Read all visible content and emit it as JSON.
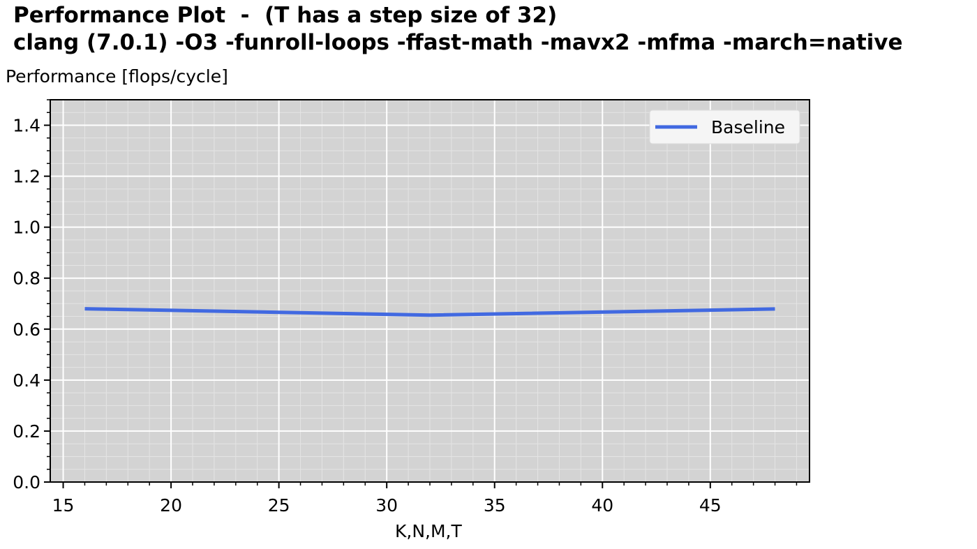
{
  "title_lines": [
    "Performance Plot  -  (T has a step size of 32)",
    "clang (7.0.1) -O3 -funroll-loops -ffast-math -mavx2 -mfma -march=native"
  ],
  "chart_data": {
    "type": "line",
    "title": "Performance Plot  -  (T has a step size of 32)\nclang (7.0.1) -O3 -funroll-loops -ffast-math -mavx2 -mfma -march=native",
    "xlabel": "K,N,M,T",
    "ylabel": "Performance [flops/cycle]",
    "xlim": [
      14.4,
      49.6
    ],
    "ylim": [
      0.0,
      1.5
    ],
    "x_ticks": [
      15,
      20,
      25,
      30,
      35,
      40,
      45
    ],
    "x_tick_labels": [
      "15",
      "20",
      "25",
      "30",
      "35",
      "40",
      "45"
    ],
    "y_ticks": [
      0.0,
      0.2,
      0.4,
      0.6,
      0.8,
      1.0,
      1.2,
      1.4
    ],
    "y_tick_labels": [
      "0.0",
      "0.2",
      "0.4",
      "0.6",
      "0.8",
      "1.0",
      "1.2",
      "1.4"
    ],
    "grid": true,
    "minor_grid": true,
    "background": "#d3d3d3",
    "legend_position": "top-right",
    "series": [
      {
        "name": "Baseline",
        "color": "#4169e1",
        "x": [
          16,
          32,
          48
        ],
        "y": [
          0.68,
          0.655,
          0.679
        ]
      }
    ]
  }
}
